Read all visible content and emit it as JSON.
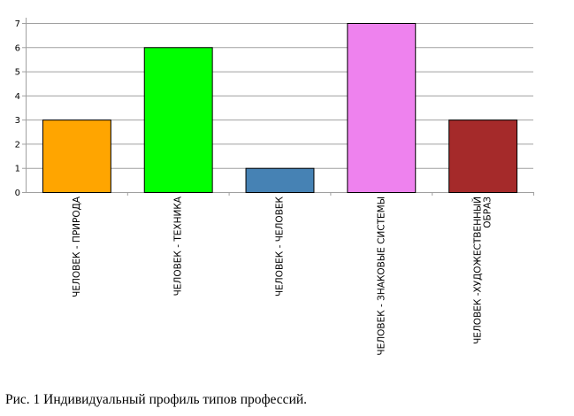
{
  "chart_data": {
    "type": "bar",
    "categories": [
      [
        "ЧЕЛОВЕК - ПРИРОДА"
      ],
      [
        "ЧЕЛОВЕК - ТЕХНИКА"
      ],
      [
        "ЧЕЛОВЕК - ЧЕЛОВЕК"
      ],
      [
        "ЧЕЛОВЕК - ЗНАКОВЫЕ СИСТЕМЫ"
      ],
      [
        "ЧЕЛОВЕК -ХУДОЖЕСТВЕННЫЙ",
        "ОБРАЗ"
      ]
    ],
    "values": [
      3,
      6,
      1,
      7,
      3
    ],
    "colors": [
      "#FFA500",
      "#00FF00",
      "#4682B4",
      "#EE82EE",
      "#A52A2A"
    ],
    "ylim": [
      0,
      7
    ],
    "yticks": [
      0,
      1,
      2,
      3,
      4,
      5,
      6,
      7
    ],
    "grid": true,
    "legend": "none"
  },
  "caption": "Рис. 1 Индивидуальный профиль типов профессий."
}
